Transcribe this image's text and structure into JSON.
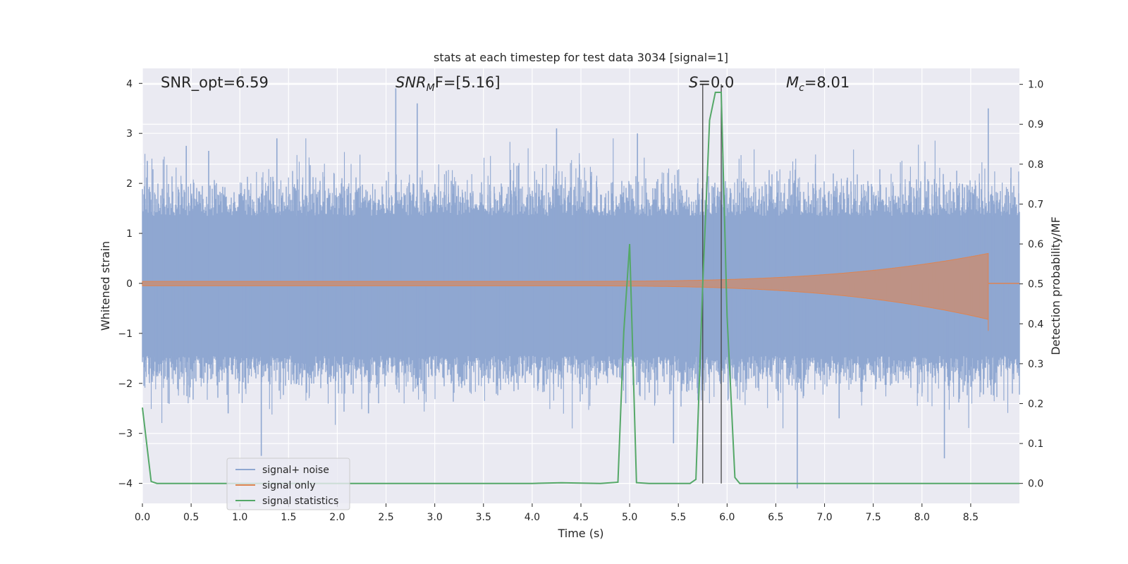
{
  "chart_data": {
    "type": "line",
    "title": "stats at each timestep for test data 3034 [signal=1]",
    "xlabel": "Time (s)",
    "ylabel_left": "Whitened strain",
    "ylabel_right": "Detection probability/MF",
    "xlim": [
      0,
      9.0
    ],
    "ylim_left": [
      -4.4,
      4.3
    ],
    "ylim_right": [
      -0.05,
      1.04
    ],
    "x_ticks": [
      "0.0",
      "0.5",
      "1.0",
      "1.5",
      "2.0",
      "2.5",
      "3.0",
      "3.5",
      "4.0",
      "4.5",
      "5.0",
      "5.5",
      "6.0",
      "6.5",
      "7.0",
      "7.5",
      "8.0",
      "8.5"
    ],
    "x_tick_values": [
      0,
      0.5,
      1,
      1.5,
      2,
      2.5,
      3,
      3.5,
      4,
      4.5,
      5,
      5.5,
      6,
      6.5,
      7,
      7.5,
      8,
      8.5
    ],
    "y_ticks_left": [
      "−4",
      "−3",
      "−2",
      "−1",
      "0",
      "1",
      "2",
      "3",
      "4"
    ],
    "y_tick_values_left": [
      -4,
      -3,
      -2,
      -1,
      0,
      1,
      2,
      3,
      4
    ],
    "y_ticks_right": [
      "0.0",
      "0.1",
      "0.2",
      "0.3",
      "0.4",
      "0.5",
      "0.6",
      "0.7",
      "0.8",
      "0.9",
      "1.0"
    ],
    "y_tick_values_right": [
      0,
      0.1,
      0.2,
      0.3,
      0.4,
      0.5,
      0.6,
      0.7,
      0.8,
      0.9,
      1.0
    ],
    "grid": true,
    "legend_placement": "lower-left",
    "annotations": {
      "snr_opt": "SNR_opt=6.59",
      "snr_mf_main": "SNR",
      "snr_mf_sub": "M",
      "snr_mf_rest": "F=[5.16]",
      "s_main": "S",
      "s_rest": "=0.0",
      "mc_main": "M",
      "mc_sub": "c",
      "mc_rest": "=8.01"
    },
    "vertical_lines_x": [
      5.75,
      5.94
    ],
    "series": [
      {
        "name": "signal+ noise",
        "axis": "left",
        "color": "#8fa7d1",
        "kind": "noise",
        "description_values": {
          "typical_band": [
            -1.7,
            1.6
          ],
          "x_range": [
            0,
            9.0
          ]
        },
        "spikes": [
          {
            "x": 0.05,
            "y": 2.45
          },
          {
            "x": 0.45,
            "y": 2.75
          },
          {
            "x": 0.68,
            "y": 2.65
          },
          {
            "x": 1.38,
            "y": 2.9
          },
          {
            "x": 2.6,
            "y": 3.9
          },
          {
            "x": 2.82,
            "y": 3.6
          },
          {
            "x": 4.25,
            "y": 3.1
          },
          {
            "x": 5.08,
            "y": 3.0
          },
          {
            "x": 8.68,
            "y": 3.5
          },
          {
            "x": 1.22,
            "y": -3.45
          },
          {
            "x": 2.32,
            "y": -2.6
          },
          {
            "x": 5.45,
            "y": -3.2
          },
          {
            "x": 6.72,
            "y": -4.1
          },
          {
            "x": 8.23,
            "y": -3.5
          },
          {
            "x": 4.96,
            "y": -2.4
          },
          {
            "x": 0.88,
            "y": -2.6
          },
          {
            "x": 7.15,
            "y": -2.7
          }
        ]
      },
      {
        "name": "signal only",
        "axis": "left",
        "color": "#dd8452",
        "kind": "chirp",
        "chirp": {
          "start": 4.0,
          "peak_time": 8.68,
          "peak_amplitude": 0.6,
          "base_amplitude": 0.04
        }
      },
      {
        "name": "signal statistics",
        "axis": "right",
        "color": "#55a868",
        "kind": "line",
        "x": [
          0,
          0.09,
          0.15,
          0.3,
          1.0,
          2.0,
          3.0,
          4.0,
          4.3,
          4.7,
          4.88,
          4.94,
          5.0,
          5.07,
          5.2,
          5.5,
          5.62,
          5.68,
          5.75,
          5.82,
          5.88,
          5.94,
          6.0,
          6.08,
          6.13,
          6.5,
          7.0,
          8.0,
          9.0
        ],
        "y": [
          0.19,
          0.005,
          0.0,
          0.0,
          0.0,
          0.0,
          0.0,
          0.0,
          0.0015,
          0.0,
          0.003,
          0.38,
          0.6,
          0.002,
          0.0,
          0.0,
          0.0,
          0.01,
          0.5,
          0.91,
          0.98,
          0.98,
          0.42,
          0.015,
          0.0,
          0.0,
          0.0,
          0.0,
          0.0
        ]
      }
    ]
  }
}
